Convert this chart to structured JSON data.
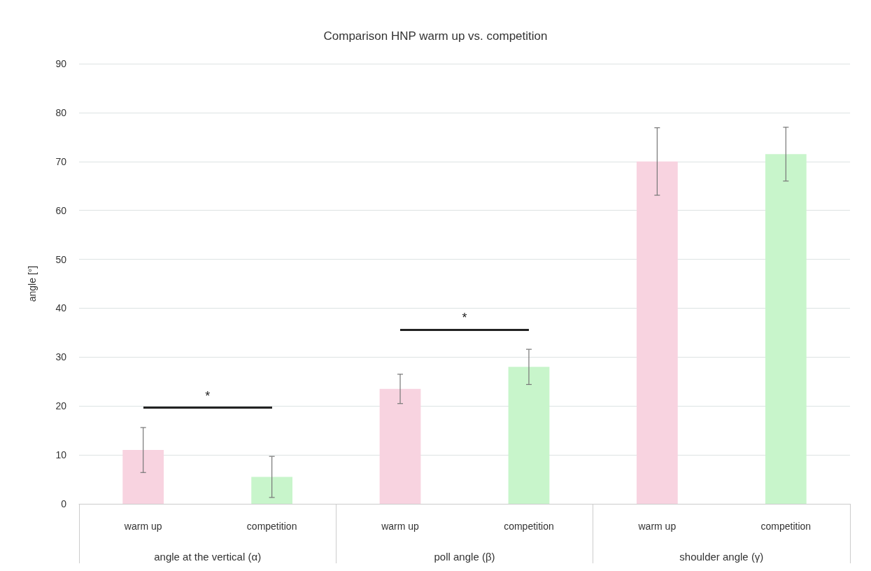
{
  "chart_data": {
    "type": "bar",
    "title": "Comparison HNP warm up vs. competition",
    "ylabel": "angle [°]",
    "categories": [
      "angle at the vertical (α)",
      "poll angle (β)",
      "shoulder angle (γ)"
    ],
    "series": [
      {
        "name": "warm up",
        "color": "#f8d3e0",
        "values": [
          11,
          23.5,
          70
        ],
        "errors": [
          4.6,
          3,
          6.9
        ]
      },
      {
        "name": "competition",
        "color": "#c8f5cb",
        "values": [
          5.5,
          28,
          71.5
        ],
        "errors": [
          4.2,
          3.6,
          5.5
        ]
      }
    ],
    "ylim": [
      0,
      90
    ],
    "yticks": [
      0,
      10,
      20,
      30,
      40,
      50,
      60,
      70,
      80,
      90
    ],
    "grid": "y",
    "legend": false,
    "annotations": [
      "*",
      "*"
    ]
  }
}
